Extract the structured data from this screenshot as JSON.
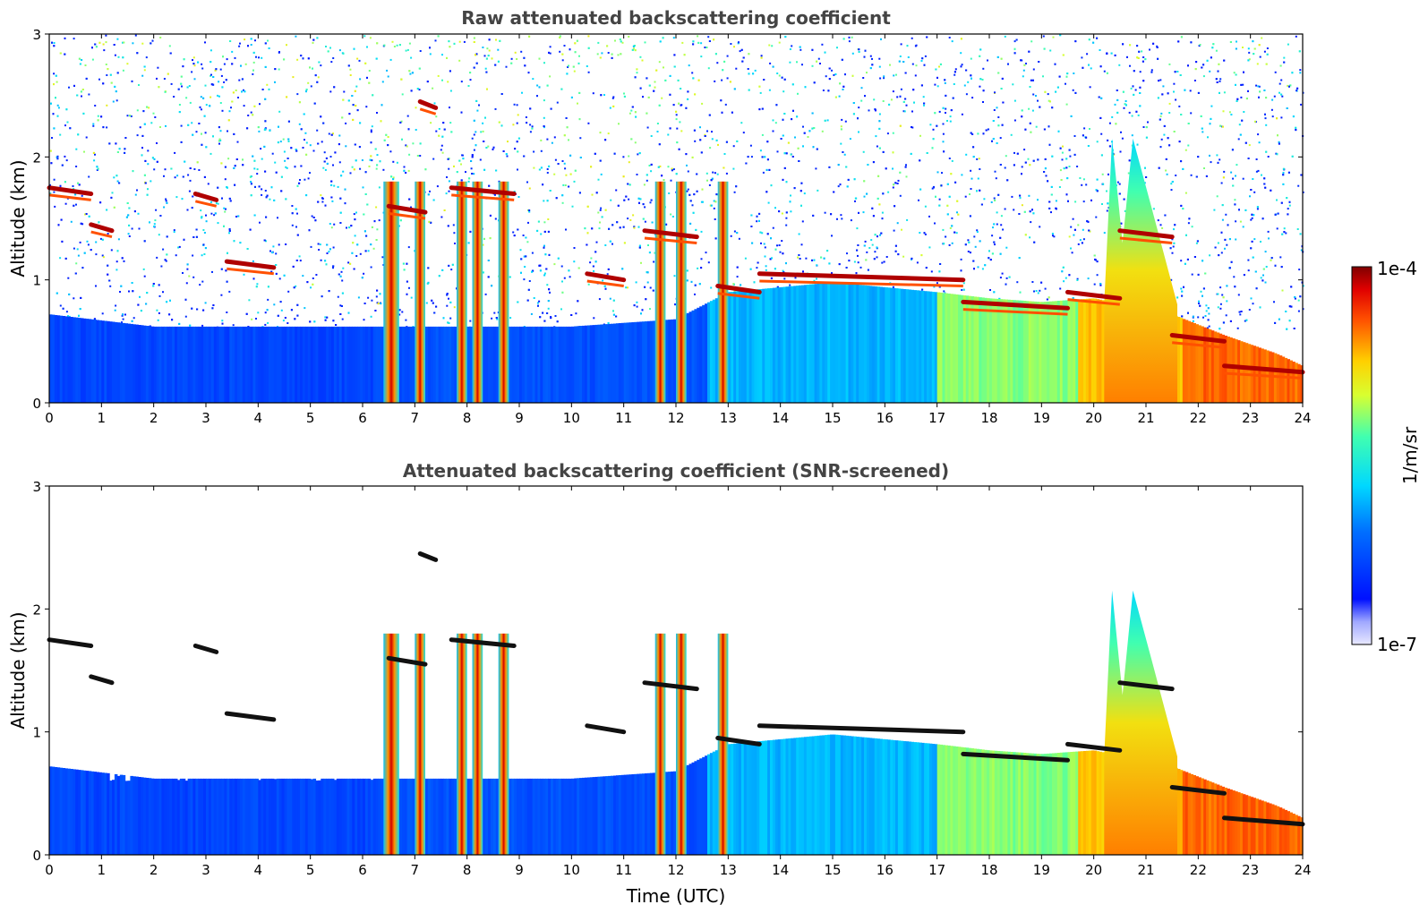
{
  "chart_data": [
    {
      "type": "heatmap",
      "title": "Raw attenuated backscattering coefficient",
      "xlabel": "",
      "ylabel": "Altitude (km)",
      "xlim": [
        0,
        24
      ],
      "ylim": [
        0,
        3
      ],
      "x_ticks": [
        "0",
        "1",
        "2",
        "3",
        "4",
        "5",
        "6",
        "7",
        "8",
        "9",
        "10",
        "11",
        "12",
        "13",
        "14",
        "15",
        "16",
        "17",
        "18",
        "19",
        "20",
        "21",
        "22",
        "23",
        "24"
      ],
      "y_ticks": [
        "0",
        "1",
        "2",
        "3"
      ],
      "screened": false
    },
    {
      "type": "heatmap",
      "title": "Attenuated backscattering coefficient (SNR-screened)",
      "xlabel": "Time (UTC)",
      "ylabel": "Altitude (km)",
      "xlim": [
        0,
        24
      ],
      "ylim": [
        0,
        3
      ],
      "x_ticks": [
        "0",
        "1",
        "2",
        "3",
        "4",
        "5",
        "6",
        "7",
        "8",
        "9",
        "10",
        "11",
        "12",
        "13",
        "14",
        "15",
        "16",
        "17",
        "18",
        "19",
        "20",
        "21",
        "22",
        "23",
        "24"
      ],
      "y_ticks": [
        "0",
        "1",
        "2",
        "3"
      ],
      "screened": true
    }
  ],
  "colorbar": {
    "label": "1/m/sr",
    "max_label": "1e-4",
    "min_label": "1e-7",
    "scale": "log",
    "colormap": "jet"
  },
  "features": {
    "boundary_layer_top_km": [
      [
        0,
        0.72
      ],
      [
        2,
        0.62
      ],
      [
        4,
        0.62
      ],
      [
        6,
        0.62
      ],
      [
        8,
        0.62
      ],
      [
        10,
        0.62
      ],
      [
        12,
        0.68
      ],
      [
        13,
        0.9
      ],
      [
        15,
        0.98
      ],
      [
        17,
        0.9
      ],
      [
        18,
        0.85
      ],
      [
        19,
        0.82
      ],
      [
        20,
        0.85
      ],
      [
        21.5,
        0.72
      ],
      [
        22.5,
        0.55
      ],
      [
        23.5,
        0.4
      ],
      [
        24,
        0.3
      ]
    ],
    "cloud_segments": [
      {
        "x0": 0,
        "x1": 0.8,
        "y": 1.75
      },
      {
        "x0": 0.8,
        "x1": 1.2,
        "y": 1.45
      },
      {
        "x0": 2.8,
        "x1": 3.2,
        "y": 1.7
      },
      {
        "x0": 3.4,
        "x1": 4.3,
        "y": 1.15
      },
      {
        "x0": 7.1,
        "x1": 7.4,
        "y": 2.45
      },
      {
        "x0": 6.5,
        "x1": 7.2,
        "y": 1.6
      },
      {
        "x0": 7.7,
        "x1": 8.9,
        "y": 1.75
      },
      {
        "x0": 10.3,
        "x1": 11.0,
        "y": 1.05
      },
      {
        "x0": 11.4,
        "x1": 12.4,
        "y": 1.4
      },
      {
        "x0": 12.8,
        "x1": 13.6,
        "y": 0.95
      },
      {
        "x0": 13.6,
        "x1": 17.5,
        "y": 1.05
      },
      {
        "x0": 17.5,
        "x1": 19.5,
        "y": 0.82
      },
      {
        "x0": 19.5,
        "x1": 20.5,
        "y": 0.9
      },
      {
        "x0": 20.5,
        "x1": 21.5,
        "y": 1.4
      },
      {
        "x0": 21.5,
        "x1": 22.5,
        "y": 0.55
      },
      {
        "x0": 22.5,
        "x1": 24,
        "y": 0.3
      }
    ],
    "high_backscatter_columns_utc": [
      [
        6.4,
        6.7
      ],
      [
        7.0,
        7.2
      ],
      [
        7.8,
        8.0
      ],
      [
        8.1,
        8.3
      ],
      [
        8.6,
        8.8
      ],
      [
        11.6,
        11.8
      ],
      [
        12.0,
        12.2
      ],
      [
        12.8,
        13.0
      ]
    ],
    "aerosol_plume": {
      "x0": 20.2,
      "x1": 21.6,
      "top_km": 2.15
    }
  }
}
